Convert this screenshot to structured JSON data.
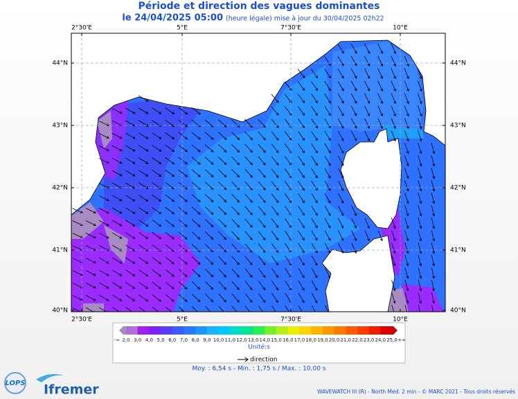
{
  "header": {
    "title": "Période et direction des vagues dominantes",
    "date": "le 24/04/2025 05:00",
    "note": "(heure légale) mise à jour du 30/04/2025 02h22"
  },
  "map": {
    "lon_labels": [
      "2°30'E",
      "5°E",
      "7°30'E",
      "10°E"
    ],
    "lat_labels": [
      "44°N",
      "43°N",
      "42°N",
      "41°N",
      "40°N"
    ]
  },
  "legend": {
    "scale_labels": [
      "-∞",
      "2,0",
      "3,0",
      "4,0",
      "5,0",
      "6,0",
      "7,0",
      "8,0",
      "9,0",
      "10,0",
      "11,0",
      "12,0",
      "13,0",
      "14,0",
      "15,0",
      "16,0",
      "17,0",
      "18,0",
      "19,0",
      "20,0",
      "21,0",
      "22,0",
      "23,0",
      "24,0",
      "25,0",
      "+∞"
    ],
    "unit": "Unité:s",
    "direction": "direction",
    "stats": "Moy. : 6,54 s   -   Min. : 1,75 s / Max. : 10,00 s"
  },
  "footer": {
    "credits": "WAVEWATCH III (R) - North Med. 2 min - © MARC 2021 - Tous droits réservés",
    "logo_lops": "LOPS",
    "logo_ifremer": "Ifremer"
  }
}
